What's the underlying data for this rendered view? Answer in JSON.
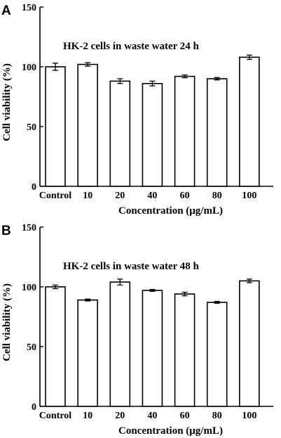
{
  "chart_data": [
    {
      "type": "bar",
      "panel_label": "A",
      "title": "HK-2 cells in waste water 24 h",
      "xlabel": "Concentration (μg/mL)",
      "ylabel": "Cell viability (%)",
      "ylim": [
        0,
        150
      ],
      "yticks": [
        "0",
        "50",
        "100",
        "150"
      ],
      "categories": [
        "Control",
        "10",
        "20",
        "40",
        "60",
        "80",
        "100"
      ],
      "values": [
        100,
        102,
        88,
        86,
        92,
        90,
        108
      ],
      "errors": [
        3,
        1.5,
        2,
        2,
        1.2,
        1,
        1.8
      ],
      "grid": false,
      "colors": {
        "bar_fill": "#ffffff",
        "bar_stroke": "#000000"
      }
    },
    {
      "type": "bar",
      "panel_label": "B",
      "title": "HK-2 cells in waste water 48 h",
      "xlabel": "Concentration (μg/mL)",
      "ylabel": "Cell viability (%)",
      "ylim": [
        0,
        150
      ],
      "yticks": [
        "0",
        "50",
        "100",
        "150"
      ],
      "categories": [
        "Control",
        "10",
        "20",
        "40",
        "60",
        "80",
        "100"
      ],
      "values": [
        100,
        89,
        104,
        97,
        94,
        87,
        105
      ],
      "errors": [
        1.5,
        0.8,
        2.5,
        0.8,
        1.5,
        0.8,
        1.5
      ],
      "grid": false,
      "colors": {
        "bar_fill": "#ffffff",
        "bar_stroke": "#000000"
      }
    }
  ]
}
